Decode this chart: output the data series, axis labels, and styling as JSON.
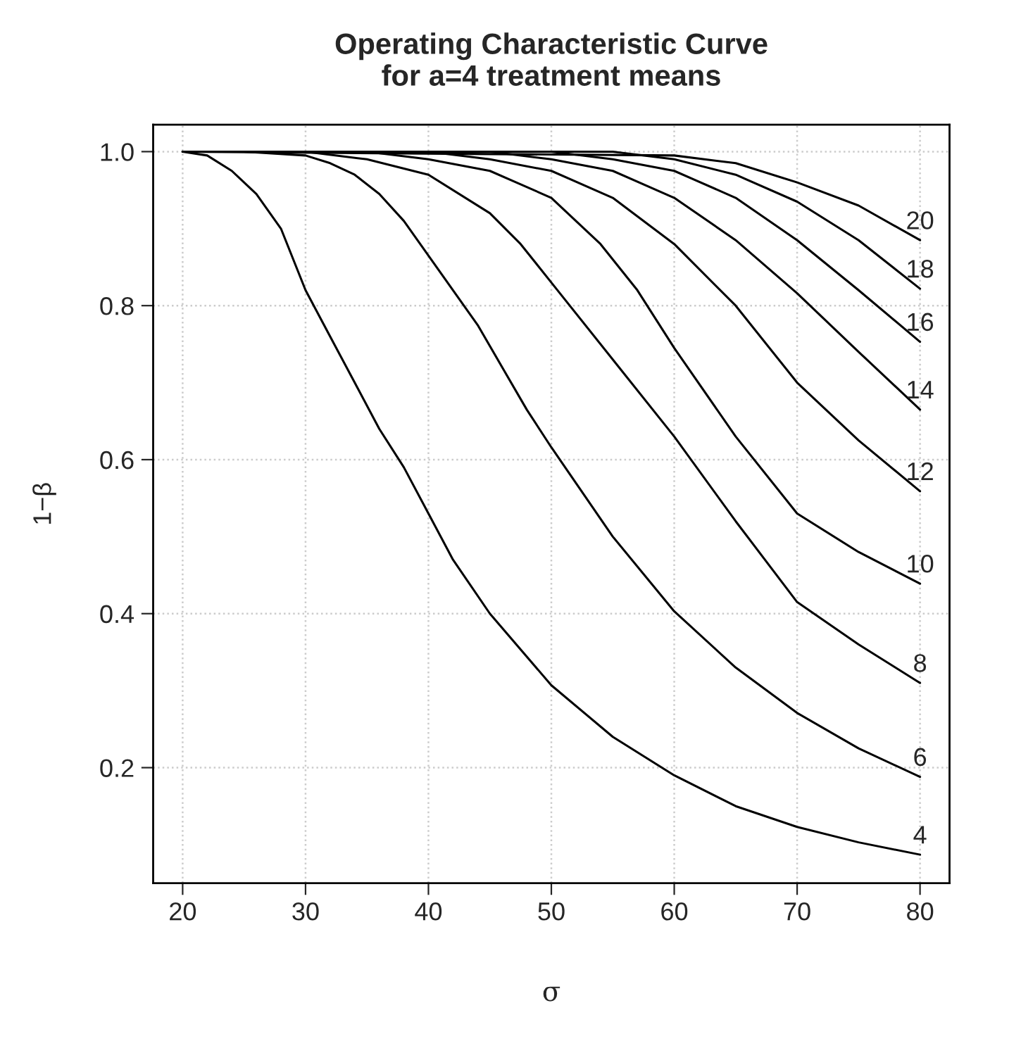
{
  "chart_data": {
    "type": "line",
    "title": "Operating Characteristic Curve\nfor a=4 treatment means",
    "xlabel": "σ",
    "ylabel": "1−β",
    "xlim": [
      17.6,
      82.4
    ],
    "ylim": [
      0.05,
      1.035
    ],
    "xticks": [
      20,
      30,
      40,
      50,
      60,
      70,
      80
    ],
    "yticks": [
      {
        "value": 0.2,
        "label": "0.2"
      },
      {
        "value": 0.4,
        "label": "0.4"
      },
      {
        "value": 0.6,
        "label": "0.6"
      },
      {
        "value": 0.8,
        "label": "0.8"
      },
      {
        "value": 1.0,
        "label": "1.0"
      }
    ],
    "grid": true,
    "legend": false,
    "marker": "none",
    "line_style": "solid",
    "series": [
      {
        "name": "4",
        "color": "#000000",
        "x": [
          20,
          22,
          24,
          26,
          28,
          30,
          32,
          34,
          36,
          38,
          40,
          42,
          45,
          50,
          55,
          60,
          65,
          70,
          75,
          80
        ],
        "values": [
          1.0,
          0.995,
          0.975,
          0.945,
          0.9,
          0.82,
          0.76,
          0.7,
          0.64,
          0.59,
          0.53,
          0.47,
          0.4,
          0.307,
          0.24,
          0.19,
          0.15,
          0.123,
          0.103,
          0.087
        ]
      },
      {
        "name": "6",
        "color": "#000000",
        "x": [
          20,
          25,
          30,
          32,
          34,
          36,
          38,
          40,
          42,
          44,
          46,
          48,
          50,
          55,
          60,
          65,
          70,
          75,
          80
        ],
        "values": [
          1.0,
          1.0,
          0.995,
          0.985,
          0.97,
          0.945,
          0.91,
          0.865,
          0.82,
          0.775,
          0.72,
          0.665,
          0.616,
          0.5,
          0.403,
          0.33,
          0.271,
          0.225,
          0.188
        ]
      },
      {
        "name": "8",
        "color": "#000000",
        "x": [
          20,
          30,
          35,
          40,
          45,
          47.5,
          50,
          55,
          60,
          65,
          70,
          75,
          80
        ],
        "values": [
          1.0,
          1.0,
          0.99,
          0.97,
          0.92,
          0.88,
          0.83,
          0.73,
          0.63,
          0.52,
          0.415,
          0.36,
          0.31
        ]
      },
      {
        "name": "10",
        "color": "#000000",
        "x": [
          20,
          35,
          40,
          45,
          50,
          54,
          57,
          60,
          65,
          70,
          75,
          80
        ],
        "values": [
          1.0,
          1.0,
          0.99,
          0.975,
          0.94,
          0.88,
          0.82,
          0.745,
          0.63,
          0.53,
          0.48,
          0.439
        ]
      },
      {
        "name": "12",
        "color": "#000000",
        "x": [
          20,
          40,
          45,
          50,
          55,
          60,
          65,
          70,
          75,
          80
        ],
        "values": [
          1.0,
          1.0,
          0.99,
          0.975,
          0.94,
          0.88,
          0.8,
          0.7,
          0.625,
          0.559
        ]
      },
      {
        "name": "14",
        "color": "#000000",
        "x": [
          20,
          45,
          50,
          55,
          60,
          65,
          70,
          75,
          80
        ],
        "values": [
          1.0,
          1.0,
          0.99,
          0.975,
          0.94,
          0.885,
          0.816,
          0.74,
          0.665
        ]
      },
      {
        "name": "16",
        "color": "#000000",
        "x": [
          20,
          50,
          55,
          60,
          65,
          70,
          75,
          80
        ],
        "values": [
          1.0,
          1.0,
          0.99,
          0.975,
          0.94,
          0.885,
          0.82,
          0.753
        ]
      },
      {
        "name": "18",
        "color": "#000000",
        "x": [
          20,
          55,
          60,
          65,
          70,
          75,
          80
        ],
        "values": [
          1.0,
          1.0,
          0.99,
          0.97,
          0.935,
          0.885,
          0.822
        ]
      },
      {
        "name": "20",
        "color": "#000000",
        "x": [
          20,
          60,
          65,
          70,
          75,
          80
        ],
        "values": [
          1.0,
          0.995,
          0.985,
          0.96,
          0.93,
          0.885
        ]
      }
    ]
  }
}
